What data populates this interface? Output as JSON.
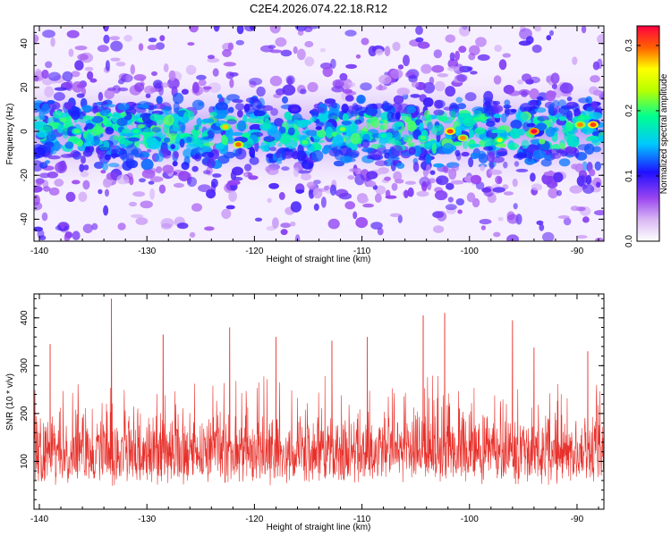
{
  "figure": {
    "title": "C2E4.2026.074.22.18.R12"
  },
  "chart_data": [
    {
      "type": "heatmap",
      "title": "C2E4.2026.074.22.18.R12",
      "xlabel": "Height of straight line (km)",
      "ylabel": "Frequency (Hz)",
      "xlim": [
        -140.5,
        -87.5
      ],
      "ylim": [
        -50,
        48
      ],
      "x_ticks": [
        -140,
        -130,
        -120,
        -110,
        -100,
        -90
      ],
      "x_tick_labels": [
        "-140",
        "-130",
        "-120",
        "-110",
        "-100",
        "-90"
      ],
      "y_ticks": [
        -40,
        -20,
        0,
        20,
        40
      ],
      "y_tick_labels": [
        "-40",
        "-20",
        "0",
        "20",
        "40"
      ],
      "colorbar": {
        "label": "Normalized spectral amplitude",
        "range": [
          0.0,
          0.33
        ],
        "ticks": [
          0.0,
          0.1,
          0.2,
          0.3
        ],
        "tick_labels": [
          "0.0",
          "0.1",
          "0.2",
          "0.3"
        ],
        "colormap": [
          "#ffffff",
          "#9a45f0",
          "#1f10ff",
          "#00c8ff",
          "#00ff90",
          "#ffff00",
          "#ff6000",
          "#ff0040"
        ]
      },
      "description_band": {
        "center_frequency_hz": 0,
        "strong_band_halfwidth_hz": 10,
        "moderate_band_halfwidth_hz": 22
      },
      "hotspots": [
        {
          "x": -121.5,
          "y": -6,
          "value": 0.28
        },
        {
          "x": -122.7,
          "y": 2,
          "value": 0.25
        },
        {
          "x": -115.3,
          "y": -5,
          "value": 0.2
        },
        {
          "x": -101.8,
          "y": 0,
          "value": 0.3
        },
        {
          "x": -100.6,
          "y": -3,
          "value": 0.27
        },
        {
          "x": -94.0,
          "y": 0,
          "value": 0.33
        },
        {
          "x": -88.5,
          "y": 3,
          "value": 0.3
        },
        {
          "x": -89.7,
          "y": 3,
          "value": 0.27
        },
        {
          "x": -97.2,
          "y": -4,
          "value": 0.23
        },
        {
          "x": -104.3,
          "y": -3,
          "value": 0.2
        },
        {
          "x": -136.5,
          "y": 0,
          "value": 0.2
        },
        {
          "x": -131.0,
          "y": 0,
          "value": 0.19
        },
        {
          "x": -111.8,
          "y": 1,
          "value": 0.21
        },
        {
          "x": -108.0,
          "y": -2,
          "value": 0.18
        }
      ]
    },
    {
      "type": "line",
      "title": "",
      "xlabel": "Height of straight line (km)",
      "ylabel": "SNR (10 * v/v)",
      "xlim": [
        -140.5,
        -87.5
      ],
      "ylim": [
        0,
        450
      ],
      "x_ticks": [
        -140,
        -130,
        -120,
        -110,
        -100,
        -90
      ],
      "x_tick_labels": [
        "-140",
        "-130",
        "-120",
        "-110",
        "-100",
        "-90"
      ],
      "y_ticks": [
        100,
        200,
        300,
        400
      ],
      "y_tick_labels": [
        "100",
        "200",
        "300",
        "400"
      ],
      "series": [
        {
          "color": "#e8302a",
          "baseline": 130,
          "typical_range": [
            30,
            250
          ],
          "peaks": [
            {
              "x": -133.3,
              "y": 440
            },
            {
              "x": -104.3,
              "y": 405
            },
            {
              "x": -102.3,
              "y": 410
            },
            {
              "x": -96.0,
              "y": 395
            },
            {
              "x": -122.3,
              "y": 380
            },
            {
              "x": -128.5,
              "y": 365
            },
            {
              "x": -118.0,
              "y": 360
            },
            {
              "x": -139.0,
              "y": 345
            },
            {
              "x": -112.8,
              "y": 352
            },
            {
              "x": -109.5,
              "y": 360
            },
            {
              "x": -89.0,
              "y": 330
            },
            {
              "x": -94.0,
              "y": 338
            }
          ]
        }
      ]
    }
  ]
}
